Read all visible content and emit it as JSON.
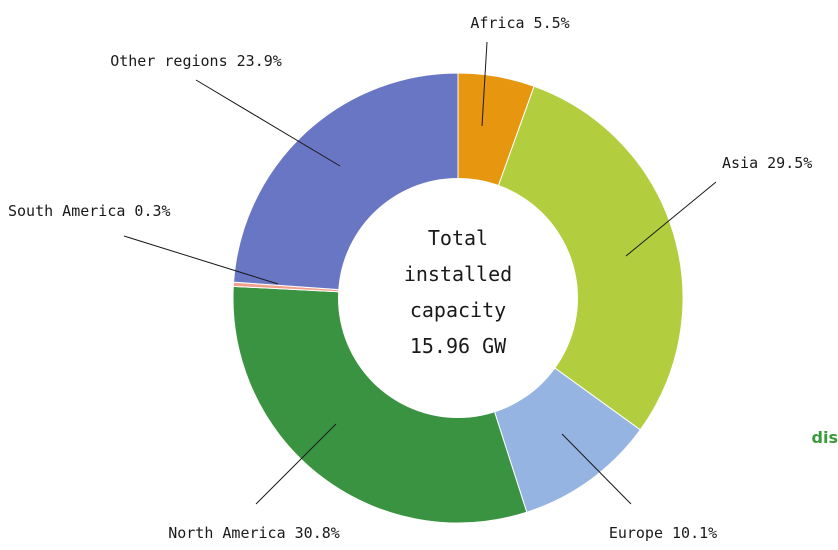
{
  "chart_data": {
    "type": "pie",
    "subtype": "donut",
    "title": "",
    "center_text": [
      "Total",
      "installed",
      "capacity",
      "15.96 GW"
    ],
    "slices": [
      {
        "label": "Africa 5.5%",
        "name": "Africa",
        "value": 5.5,
        "color": "#e6960f"
      },
      {
        "label": "Asia 29.5%",
        "name": "Asia",
        "value": 29.5,
        "color": "#b2cd3e"
      },
      {
        "label": "Europe 10.1%",
        "name": "Europe",
        "value": 10.1,
        "color": "#96b4e1"
      },
      {
        "label": "North America 30.8%",
        "name": "North America",
        "value": 30.8,
        "color": "#3a9340"
      },
      {
        "label": "South America 0.3%",
        "name": "South America",
        "value": 0.3,
        "color": "#f2a08c"
      },
      {
        "label": "Other regions 23.9%",
        "name": "Other regions",
        "value": 23.9,
        "color": "#6976c4"
      }
    ],
    "start_angle": "12 o'clock, clockwise",
    "legend": "none"
  },
  "edge_text": "dis"
}
